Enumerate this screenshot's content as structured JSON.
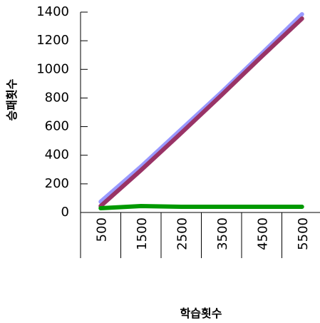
{
  "chart_data": {
    "type": "line",
    "xlabel": "학습횟수",
    "ylabel": "승패횟수",
    "ylim": [
      0,
      1400
    ],
    "yticks": [
      "0",
      "200",
      "400",
      "600",
      "800",
      "1000",
      "1200",
      "1400"
    ],
    "categories": [
      "500",
      "1500",
      "2500",
      "3500",
      "4500",
      "5500"
    ],
    "grid": false,
    "legend": "none",
    "series": [
      {
        "color": "#9999ff",
        "values": [
          75,
          320,
          580,
          840,
          1110,
          1385
        ]
      },
      {
        "color": "#993366",
        "values": [
          45,
          295,
          555,
          820,
          1090,
          1355
        ]
      },
      {
        "color": "#009900",
        "values": [
          30,
          45,
          40,
          40,
          40,
          40
        ]
      }
    ]
  }
}
